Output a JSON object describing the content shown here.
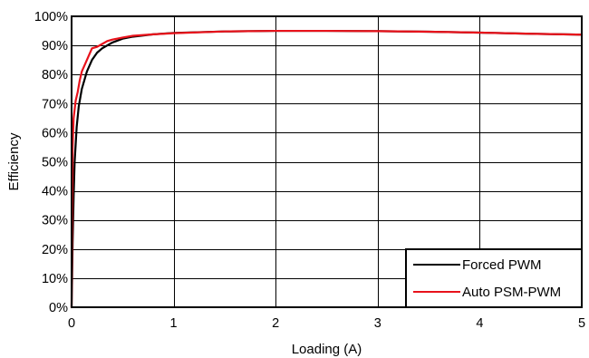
{
  "chart_data": {
    "type": "line",
    "title": "",
    "xlabel": "Loading (A)",
    "ylabel": "Efficiency",
    "xlim": [
      0,
      5
    ],
    "ylim": [
      0,
      100
    ],
    "x_ticks": [
      0,
      1,
      2,
      3,
      4,
      5
    ],
    "x_tick_labels": [
      "0",
      "1",
      "2",
      "3",
      "4",
      "5"
    ],
    "y_ticks": [
      0,
      10,
      20,
      30,
      40,
      50,
      60,
      70,
      80,
      90,
      100
    ],
    "y_tick_labels": [
      "0%",
      "10%",
      "20%",
      "30%",
      "40%",
      "50%",
      "60%",
      "70%",
      "80%",
      "90%",
      "100%"
    ],
    "grid": true,
    "legend_position": "bottom-right",
    "series": [
      {
        "name": "Forced PWM",
        "color": "#000000",
        "x": [
          0.0,
          0.005,
          0.01,
          0.02,
          0.03,
          0.05,
          0.07,
          0.1,
          0.15,
          0.2,
          0.25,
          0.3,
          0.4,
          0.5,
          0.6,
          0.8,
          1.0,
          1.5,
          2.0,
          2.5,
          3.0,
          3.5,
          4.0,
          4.5,
          5.0
        ],
        "y": [
          0,
          10,
          22,
          38,
          50,
          62,
          69,
          75,
          81,
          85,
          87.5,
          89,
          91,
          92.3,
          93,
          93.8,
          94.3,
          94.8,
          95.0,
          95.0,
          94.9,
          94.7,
          94.4,
          94.0,
          93.7
        ]
      },
      {
        "name": "Auto PSM-PWM",
        "color": "#e8121b",
        "x": [
          0.0,
          0.005,
          0.01,
          0.02,
          0.04,
          0.06,
          0.08,
          0.1,
          0.15,
          0.2,
          0.25,
          0.3,
          0.35,
          0.4,
          0.5,
          0.6,
          0.8,
          1.0,
          1.5,
          2.0,
          2.5,
          3.0,
          3.5,
          4.0,
          4.5,
          5.0
        ],
        "y": [
          0,
          30,
          55,
          65,
          71,
          74,
          78,
          81,
          85,
          89,
          89.5,
          90.5,
          91.5,
          92,
          92.7,
          93.3,
          93.8,
          94.2,
          94.8,
          95.0,
          95.0,
          94.9,
          94.7,
          94.4,
          94.0,
          93.7
        ]
      }
    ]
  }
}
